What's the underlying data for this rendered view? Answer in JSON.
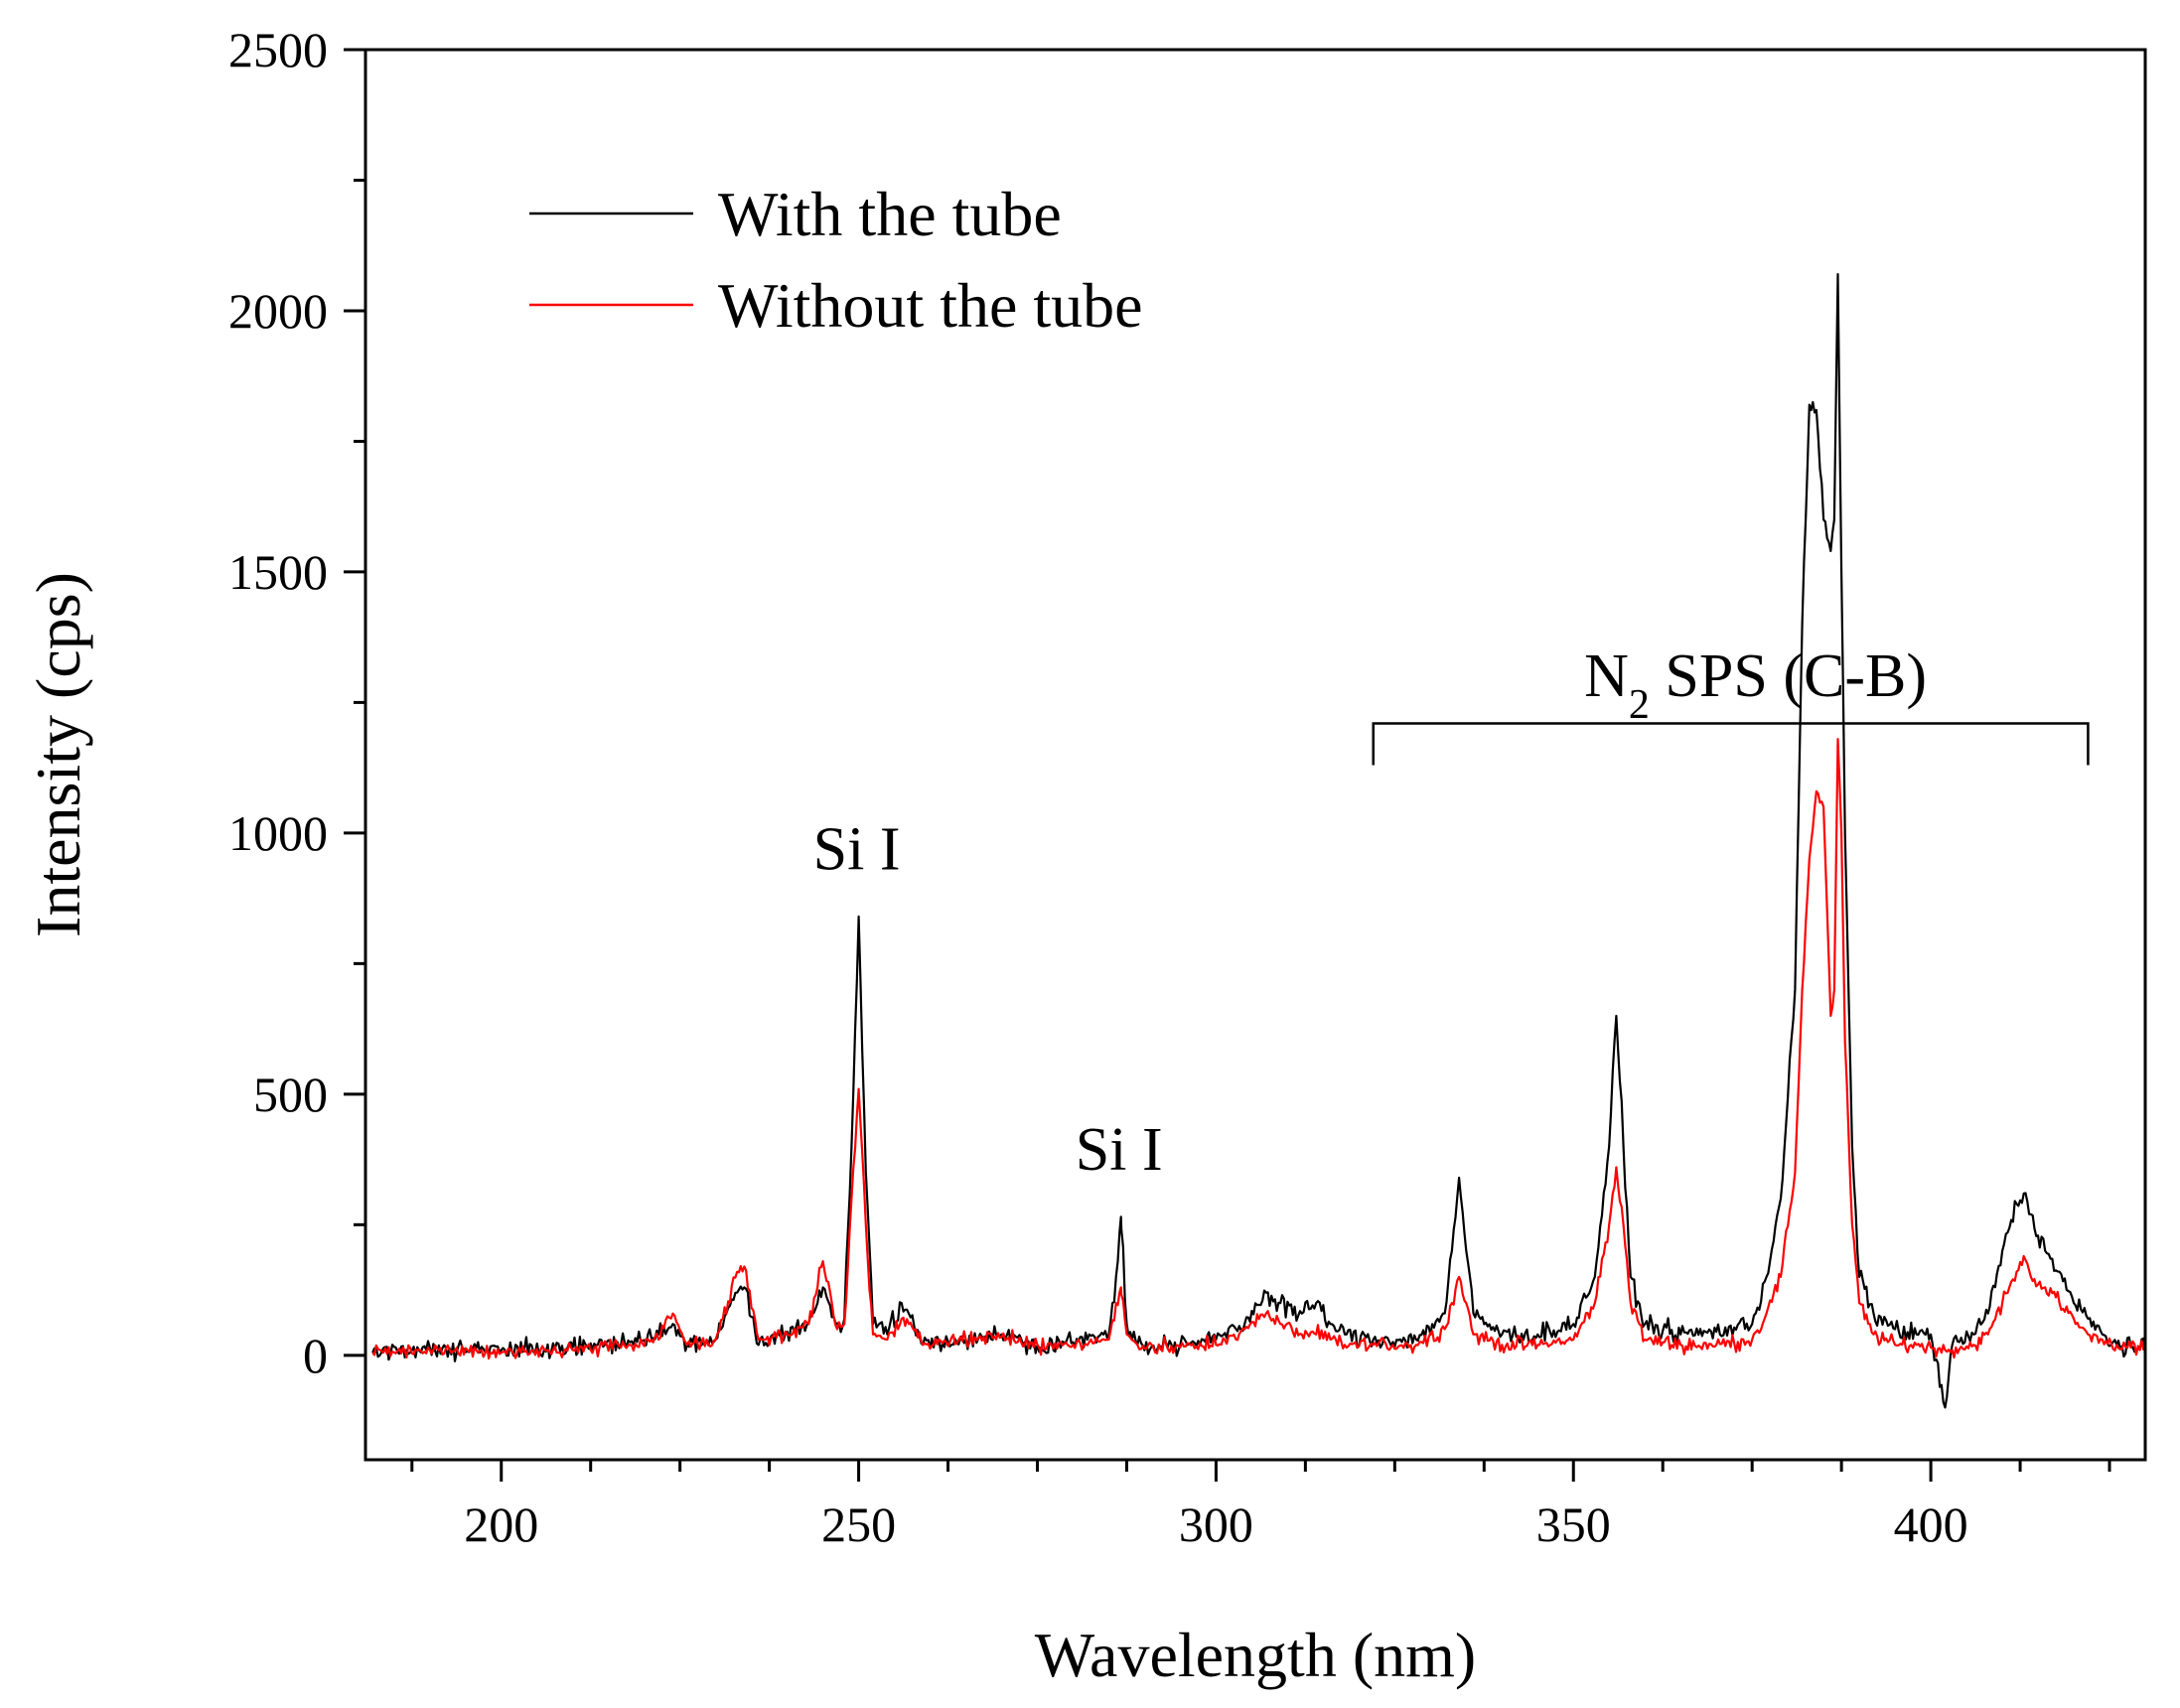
{
  "chart_data": {
    "type": "line",
    "title": "",
    "xlabel": "Wavelength (nm)",
    "ylabel": "Intensity (cps)",
    "xlim": [
      181,
      430
    ],
    "ylim": [
      -200,
      2500
    ],
    "xticks": [
      200,
      250,
      300,
      350,
      400
    ],
    "yticks": [
      0,
      500,
      1000,
      1500,
      2000,
      2500
    ],
    "grid": false,
    "legend_position": "top-left",
    "series": [
      {
        "name": "With the tube",
        "color": "#000000",
        "points": [
          [
            182,
            5
          ],
          [
            190,
            15
          ],
          [
            200,
            10
          ],
          [
            210,
            15
          ],
          [
            218,
            25
          ],
          [
            222,
            40
          ],
          [
            224,
            60
          ],
          [
            226,
            20
          ],
          [
            230,
            30
          ],
          [
            233,
            120
          ],
          [
            234,
            130
          ],
          [
            236,
            20
          ],
          [
            240,
            45
          ],
          [
            243,
            60
          ],
          [
            245,
            130
          ],
          [
            247,
            60
          ],
          [
            248,
            70
          ],
          [
            249,
            400
          ],
          [
            250,
            840
          ],
          [
            251,
            350
          ],
          [
            252,
            60
          ],
          [
            254,
            40
          ],
          [
            256,
            100
          ],
          [
            257,
            80
          ],
          [
            259,
            20
          ],
          [
            265,
            30
          ],
          [
            270,
            40
          ],
          [
            275,
            20
          ],
          [
            280,
            25
          ],
          [
            285,
            40
          ],
          [
            286,
            150
          ],
          [
            286.7,
            265
          ],
          [
            287.5,
            60
          ],
          [
            289,
            20
          ],
          [
            295,
            20
          ],
          [
            300,
            30
          ],
          [
            304,
            60
          ],
          [
            307,
            120
          ],
          [
            309,
            100
          ],
          [
            312,
            80
          ],
          [
            314,
            100
          ],
          [
            316,
            60
          ],
          [
            318,
            40
          ],
          [
            322,
            30
          ],
          [
            328,
            30
          ],
          [
            332,
            80
          ],
          [
            333,
            200
          ],
          [
            334,
            340
          ],
          [
            335,
            200
          ],
          [
            336,
            80
          ],
          [
            340,
            40
          ],
          [
            345,
            40
          ],
          [
            350,
            60
          ],
          [
            353,
            150
          ],
          [
            355,
            400
          ],
          [
            356,
            650
          ],
          [
            357,
            400
          ],
          [
            358,
            150
          ],
          [
            360,
            60
          ],
          [
            365,
            40
          ],
          [
            370,
            45
          ],
          [
            375,
            60
          ],
          [
            377,
            150
          ],
          [
            379,
            300
          ],
          [
            381,
            700
          ],
          [
            382,
            1400
          ],
          [
            383,
            1820
          ],
          [
            384,
            1810
          ],
          [
            385,
            1600
          ],
          [
            386,
            1540
          ],
          [
            386.5,
            1600
          ],
          [
            387,
            2070
          ],
          [
            387.5,
            1500
          ],
          [
            388,
            1000
          ],
          [
            389,
            400
          ],
          [
            390,
            150
          ],
          [
            392,
            80
          ],
          [
            395,
            50
          ],
          [
            398,
            40
          ],
          [
            400,
            40
          ],
          [
            402,
            -100
          ],
          [
            403,
            20
          ],
          [
            406,
            40
          ],
          [
            408,
            80
          ],
          [
            410,
            200
          ],
          [
            412,
            290
          ],
          [
            413,
            310
          ],
          [
            414,
            270
          ],
          [
            416,
            200
          ],
          [
            418,
            160
          ],
          [
            420,
            100
          ],
          [
            422,
            70
          ],
          [
            424,
            40
          ],
          [
            426,
            20
          ],
          [
            428,
            15
          ],
          [
            430,
            10
          ]
        ]
      },
      {
        "name": "Without the tube",
        "color": "#ff0000",
        "points": [
          [
            182,
            5
          ],
          [
            190,
            10
          ],
          [
            200,
            5
          ],
          [
            210,
            10
          ],
          [
            218,
            20
          ],
          [
            222,
            30
          ],
          [
            224,
            80
          ],
          [
            226,
            20
          ],
          [
            230,
            30
          ],
          [
            233,
            160
          ],
          [
            234,
            170
          ],
          [
            236,
            30
          ],
          [
            240,
            40
          ],
          [
            243,
            60
          ],
          [
            245,
            180
          ],
          [
            247,
            50
          ],
          [
            248,
            60
          ],
          [
            249,
            300
          ],
          [
            250,
            510
          ],
          [
            251,
            250
          ],
          [
            252,
            40
          ],
          [
            254,
            30
          ],
          [
            256,
            70
          ],
          [
            257,
            60
          ],
          [
            259,
            20
          ],
          [
            265,
            30
          ],
          [
            270,
            35
          ],
          [
            275,
            20
          ],
          [
            280,
            20
          ],
          [
            285,
            30
          ],
          [
            286,
            100
          ],
          [
            286.7,
            130
          ],
          [
            287.5,
            40
          ],
          [
            289,
            20
          ],
          [
            295,
            15
          ],
          [
            300,
            20
          ],
          [
            304,
            50
          ],
          [
            307,
            80
          ],
          [
            309,
            60
          ],
          [
            312,
            40
          ],
          [
            314,
            40
          ],
          [
            316,
            30
          ],
          [
            318,
            20
          ],
          [
            322,
            20
          ],
          [
            328,
            20
          ],
          [
            332,
            50
          ],
          [
            333,
            100
          ],
          [
            334,
            150
          ],
          [
            335,
            100
          ],
          [
            336,
            40
          ],
          [
            340,
            20
          ],
          [
            345,
            20
          ],
          [
            350,
            30
          ],
          [
            353,
            100
          ],
          [
            355,
            250
          ],
          [
            356,
            360
          ],
          [
            357,
            250
          ],
          [
            358,
            100
          ],
          [
            360,
            30
          ],
          [
            365,
            20
          ],
          [
            370,
            20
          ],
          [
            375,
            30
          ],
          [
            377,
            80
          ],
          [
            379,
            150
          ],
          [
            381,
            350
          ],
          [
            382,
            700
          ],
          [
            383,
            950
          ],
          [
            384,
            1080
          ],
          [
            385,
            1050
          ],
          [
            386,
            650
          ],
          [
            386.5,
            700
          ],
          [
            387,
            1180
          ],
          [
            387.5,
            1000
          ],
          [
            388,
            600
          ],
          [
            389,
            250
          ],
          [
            390,
            100
          ],
          [
            392,
            40
          ],
          [
            395,
            20
          ],
          [
            398,
            20
          ],
          [
            400,
            15
          ],
          [
            402,
            10
          ],
          [
            403,
            10
          ],
          [
            406,
            20
          ],
          [
            408,
            40
          ],
          [
            410,
            100
          ],
          [
            412,
            160
          ],
          [
            413,
            190
          ],
          [
            414,
            150
          ],
          [
            416,
            130
          ],
          [
            418,
            100
          ],
          [
            420,
            70
          ],
          [
            422,
            40
          ],
          [
            424,
            30
          ],
          [
            426,
            20
          ],
          [
            428,
            15
          ],
          [
            430,
            10
          ]
        ]
      }
    ],
    "annotations": [
      {
        "text": "Si I",
        "x": 250,
        "y": 930
      },
      {
        "text": "Si I",
        "x": 286.7,
        "y": 355
      }
    ],
    "bracket": {
      "label_main": "N",
      "label_sub": "2",
      "label_rest": " SPS (C-B)",
      "x_start": 322,
      "x_end": 422,
      "y": 1210,
      "label_y": 1300,
      "label_x": 372
    }
  }
}
